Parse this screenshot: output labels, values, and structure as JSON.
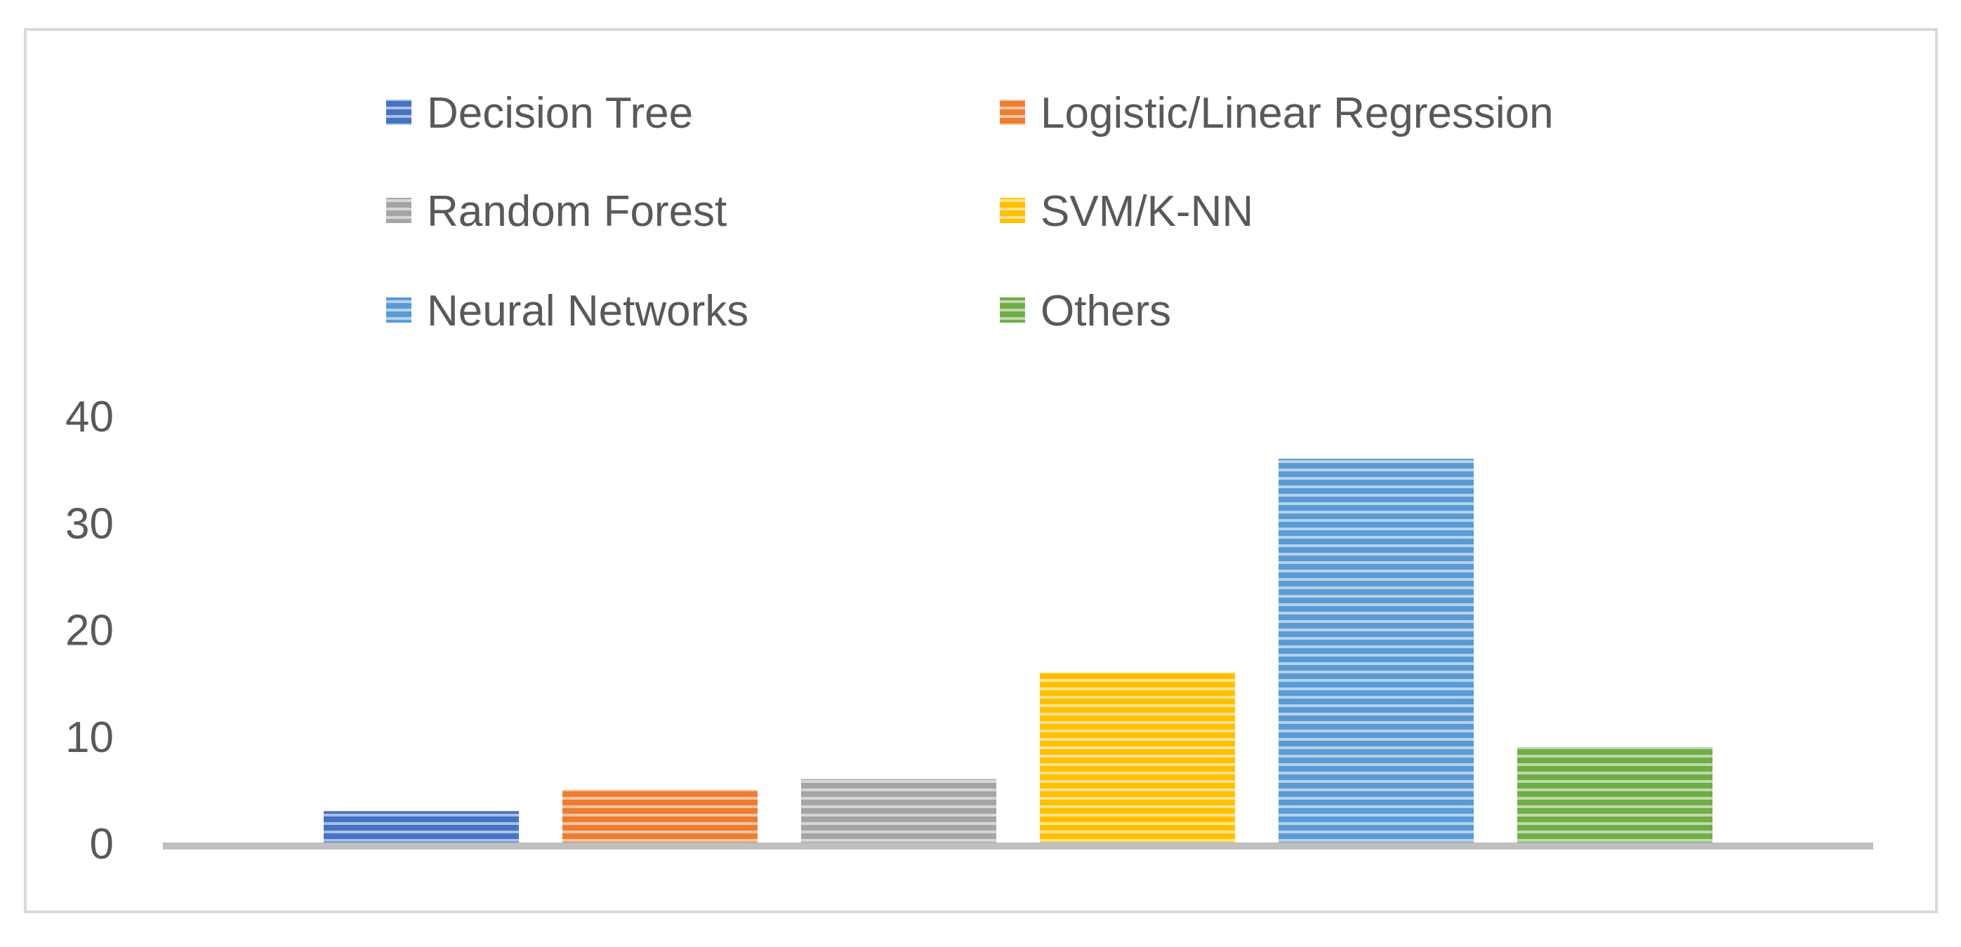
{
  "chart_data": {
    "type": "bar",
    "title": "",
    "xlabel": "",
    "ylabel": "",
    "ylim": [
      0,
      40
    ],
    "yticks": [
      "0",
      "10",
      "20",
      "30",
      "40"
    ],
    "grid": false,
    "legend_position": "top",
    "series": [
      {
        "name": "Decision Tree",
        "values": [
          3
        ],
        "color": "#4472C4"
      },
      {
        "name": "Logistic/Linear Regression",
        "values": [
          5
        ],
        "color": "#ED7D31"
      },
      {
        "name": "Random Forest",
        "values": [
          6
        ],
        "color": "#A5A5A5"
      },
      {
        "name": "SVM/K-NN",
        "values": [
          16
        ],
        "color": "#FFC000"
      },
      {
        "name": "Neural Networks",
        "values": [
          36
        ],
        "color": "#5B9BD5"
      },
      {
        "name": "Others",
        "values": [
          9
        ],
        "color": "#70AD47"
      }
    ]
  }
}
